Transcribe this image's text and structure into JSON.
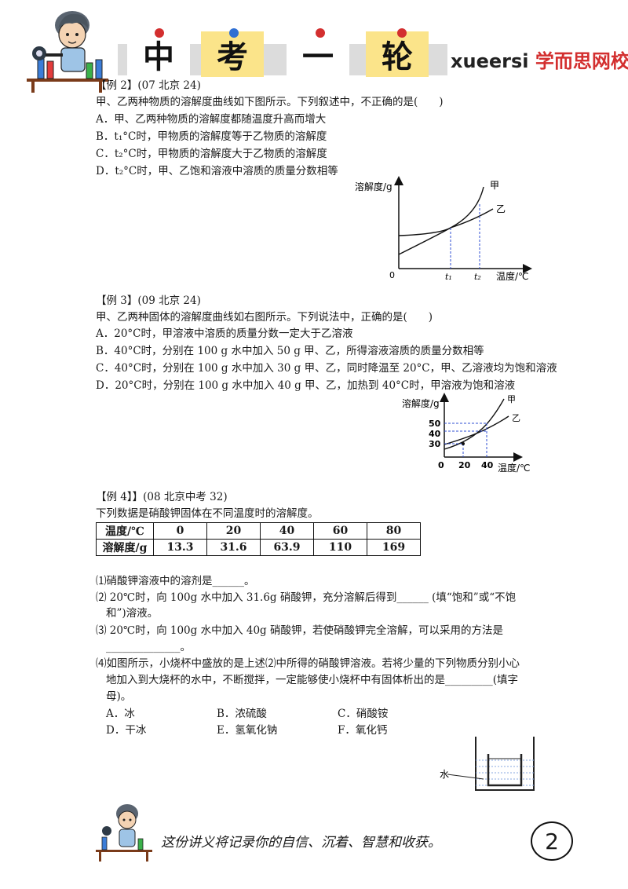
{
  "header": {
    "banner_chars": [
      "中",
      "考",
      "一",
      "轮"
    ],
    "brand_latin": "xueersi",
    "brand_cn": "学而思网校",
    "brand_color": "#d32f2f"
  },
  "ex2": {
    "title": "【例 2】(07 北京 24)",
    "stem": "甲、乙两种物质的溶解度曲线如下图所示。下列叙述中，不正确的是(　　)",
    "options": [
      "A．甲、乙两种物质的溶解度都随温度升高而增大",
      "B．t₁°C时，甲物质的溶解度等于乙物质的溶解度",
      "C．t₂°C时，甲物质的溶解度大于乙物质的溶解度",
      "D．t₂°C时，甲、乙饱和溶液中溶质的质量分数相等"
    ],
    "graph": {
      "ylabel": "溶解度/g",
      "xlabel": "温度/℃",
      "origin": "0",
      "t1": "t₁",
      "t2": "t₂",
      "curve_a": "甲",
      "curve_b": "乙"
    }
  },
  "ex3": {
    "title": "【例 3】(09 北京 24)",
    "stem": "甲、乙两种固体的溶解度曲线如右图所示。下列说法中，正确的是(　　)",
    "options": [
      "A．20°C时，甲溶液中溶质的质量分数一定大于乙溶液",
      "B．40°C时，分别在 100 g 水中加入 50 g 甲、乙，所得溶液溶质的质量分数相等",
      "C．40°C时，分别在 100 g 水中加入 30 g 甲、乙，同时降温至 20°C，甲、乙溶液均为饱和溶液",
      "D．20°C时，分别在 100 g 水中加入 40 g 甲、乙，加热到 40°C时，甲溶液为饱和溶液"
    ],
    "graph": {
      "ylabel": "溶解度/g",
      "xlabel": "温度/℃",
      "origin": "0",
      "yticks": [
        "50",
        "40",
        "30"
      ],
      "xticks": [
        "20",
        "40"
      ],
      "curve_a": "甲",
      "curve_b": "乙"
    }
  },
  "ex4": {
    "title": "【例 4】】(08 北京中考 32)",
    "intro": "下列数据是硝酸钾固体在不同温度时的溶解度。",
    "table": {
      "row_labels": [
        "温度/℃",
        "溶解度/g"
      ],
      "temps": [
        "0",
        "20",
        "40",
        "60",
        "80"
      ],
      "solubility": [
        "13.3",
        "31.6",
        "63.9",
        "110",
        "169"
      ]
    },
    "q1": "⑴硝酸钾溶液中的溶剂是______。",
    "q2_line1": "⑵ 20℃时，向 100g 水中加入  31.6g 硝酸钾，充分溶解后得到______ (填“饱和”或“不饱",
    "q2_line2": "和”)溶液。",
    "q3_line1": "⑶ 20℃时，向 100g 水中加入 40g 硝酸钾，若使硝酸钾完全溶解，可以采用的方法是",
    "q3_line2": "______________。",
    "q4_line1": "⑷如图所示，小烧杯中盛放的是上述⑵中所得的硝酸钾溶液。若将少量的下列物质分别小心",
    "q4_line2": "地加入到大烧杯的水中，不断搅拌，一定能够使小烧杯中有固体析出的是_________(填字",
    "q4_line3": "母)。",
    "choices": [
      "A．冰",
      "B．浓硫酸",
      "C．硝酸铵",
      "D．干冰",
      "E．氢氧化钠",
      "F．氧化钙"
    ],
    "beaker_label": "水"
  },
  "footer": {
    "slogan": "这份讲义将记录你的自信、沉着、智慧和收获。",
    "page_number": "2"
  }
}
